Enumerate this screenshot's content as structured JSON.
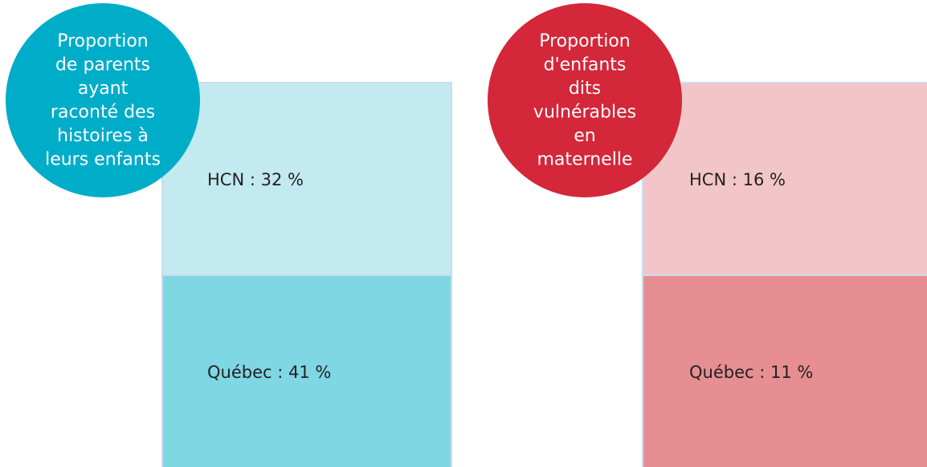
{
  "panels": [
    {
      "title_lines": [
        "Proportion",
        "de parents",
        "ayant",
        "raconté des",
        "histoires à",
        "leurs enfants"
      ],
      "rows": [
        "HCN : 32 %",
        "Québec : 41 %"
      ]
    },
    {
      "title_lines": [
        "Proportion",
        "d'enfants",
        "dits",
        "vulnérables",
        "en",
        "maternelle"
      ],
      "rows": [
        "HCN : 16 %",
        "Québec : 11 %"
      ]
    }
  ]
}
